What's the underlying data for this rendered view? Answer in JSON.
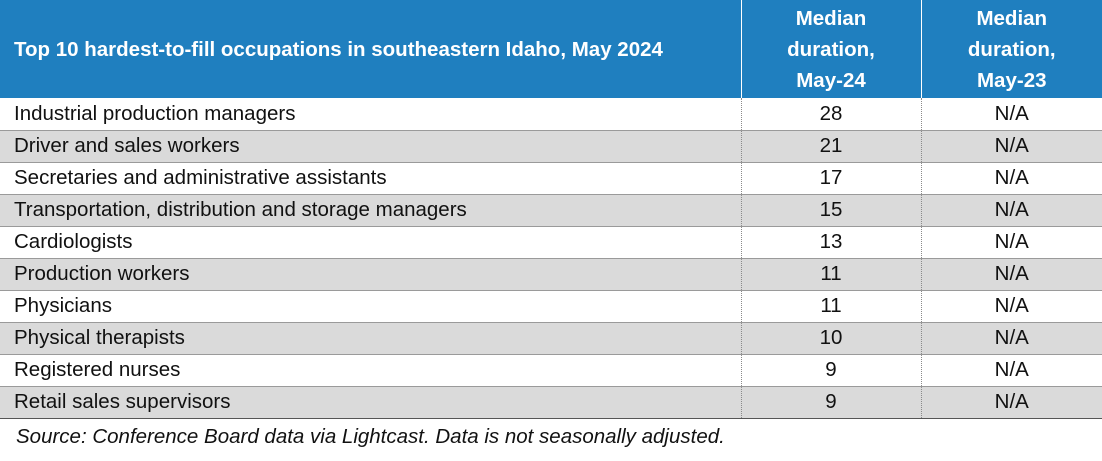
{
  "table": {
    "headers": {
      "occupation": "Top 10 hardest-to-fill occupations in southeastern Idaho, May 2024",
      "may24": [
        "Median",
        "duration,",
        "May-24"
      ],
      "may23": [
        "Median",
        "duration,",
        "May-23"
      ]
    },
    "rows": [
      {
        "occupation": "Industrial production managers",
        "may24": "28",
        "may23": "N/A"
      },
      {
        "occupation": "Driver and sales workers",
        "may24": "21",
        "may23": "N/A"
      },
      {
        "occupation": "Secretaries and administrative assistants",
        "may24": "17",
        "may23": "N/A"
      },
      {
        "occupation": "Transportation, distribution and storage managers",
        "may24": "15",
        "may23": "N/A"
      },
      {
        "occupation": "Cardiologists",
        "may24": "13",
        "may23": "N/A"
      },
      {
        "occupation": "Production workers",
        "may24": "11",
        "may23": "N/A"
      },
      {
        "occupation": "Physicians",
        "may24": "11",
        "may23": "N/A"
      },
      {
        "occupation": "Physical therapists",
        "may24": "10",
        "may23": "N/A"
      },
      {
        "occupation": "Registered nurses",
        "may24": "9",
        "may23": "N/A"
      },
      {
        "occupation": "Retail sales supervisors",
        "may24": "9",
        "may23": "N/A"
      }
    ]
  },
  "source": "Source: Conference Board data via Lightcast. Data is not seasonally adjusted.",
  "colors": {
    "header_bg": "#1f7fbf",
    "header_text": "#ffffff",
    "alt_row_bg": "#dadada"
  }
}
